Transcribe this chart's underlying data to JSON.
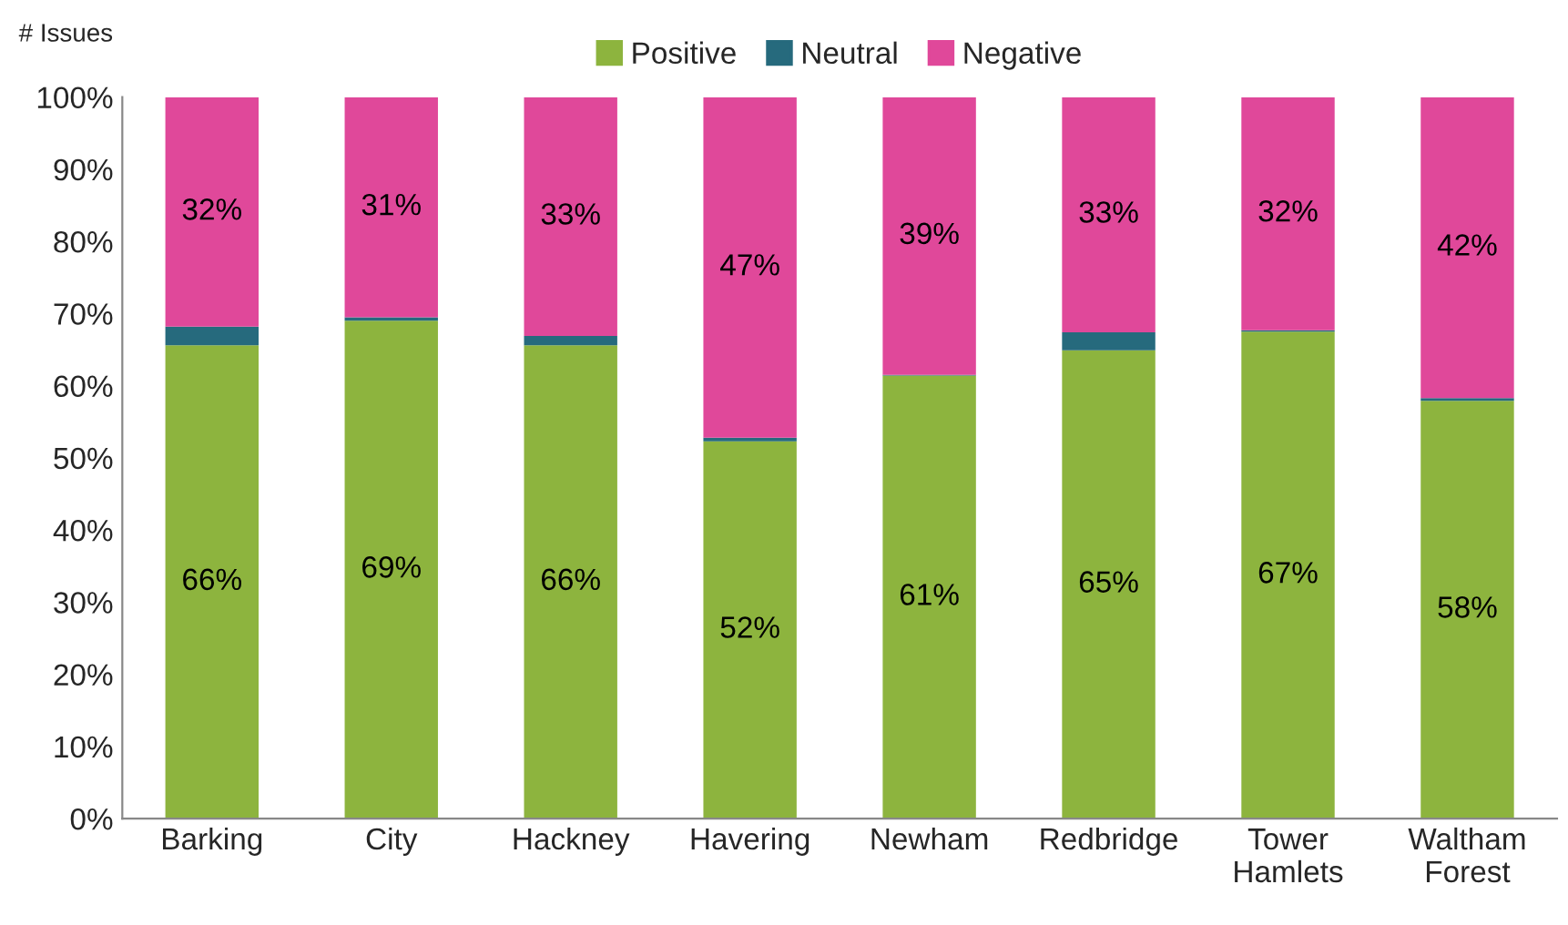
{
  "chart_data": {
    "type": "bar",
    "stacked": true,
    "ylabel": "# Issues",
    "categories": [
      "Barking",
      "City",
      "Hackney",
      "Havering",
      "Newham",
      "Redbridge",
      "Tower\nHamlets",
      "Waltham\nForest"
    ],
    "series": [
      {
        "name": "Positive",
        "color": "#8db43e",
        "values": [
          65.6,
          69.0,
          65.6,
          52.3,
          61.4,
          64.9,
          67.5,
          57.9
        ],
        "value_labels": [
          "66%",
          "69%",
          "66%",
          "52%",
          "61%",
          "65%",
          "67%",
          "58%"
        ]
      },
      {
        "name": "Neutral",
        "color": "#266a7d",
        "values": [
          2.6,
          0.5,
          1.3,
          0.5,
          0.1,
          2.5,
          0.2,
          0.4
        ]
      },
      {
        "name": "Negative",
        "color": "#e0489a",
        "values": [
          31.8,
          30.5,
          33.1,
          47.2,
          38.5,
          32.6,
          32.3,
          41.7
        ],
        "value_labels": [
          "32%",
          "31%",
          "33%",
          "47%",
          "39%",
          "33%",
          "32%",
          "42%"
        ]
      }
    ],
    "ylim": [
      0,
      100
    ],
    "yticks": [
      {
        "value": 0,
        "label": "0%"
      },
      {
        "value": 10,
        "label": "10%"
      },
      {
        "value": 20,
        "label": "20%"
      },
      {
        "value": 30,
        "label": "30%"
      },
      {
        "value": 40,
        "label": "40%"
      },
      {
        "value": 50,
        "label": "50%"
      },
      {
        "value": 60,
        "label": "60%"
      },
      {
        "value": 70,
        "label": "70%"
      },
      {
        "value": 80,
        "label": "80%"
      },
      {
        "value": 90,
        "label": "90%"
      },
      {
        "value": 100,
        "label": "100%"
      }
    ],
    "legend": "top",
    "grid": false
  }
}
